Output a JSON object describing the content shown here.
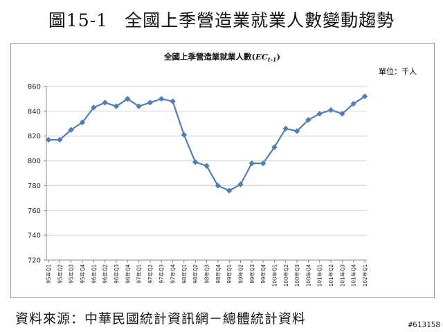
{
  "figure": {
    "number": "圖15-1",
    "title": "全國上季營造業就業人數變動趨勢",
    "source": "資料來源：中華民國統計資訊網－總體統計資料",
    "watermark": "#613158"
  },
  "chart_data": {
    "type": "line",
    "title": "全國上季營造業就業人數",
    "title_symbol_main": "EC",
    "title_symbol_sub": "t-1",
    "unit": "單位：千人",
    "ylim": [
      720,
      860
    ],
    "yticks": [
      720,
      740,
      760,
      780,
      800,
      820,
      840,
      860
    ],
    "grid": true,
    "line_color": "#4f7dbb",
    "categories": [
      "95年Q1",
      "95年Q2",
      "95年Q3",
      "95年Q4",
      "96年Q1",
      "96年Q2",
      "96年Q3",
      "96年Q4",
      "97年Q1",
      "97年Q2",
      "97年Q3",
      "97年Q4",
      "98年Q1",
      "98年Q2",
      "98年Q3",
      "98年Q4",
      "99年Q1",
      "99年Q2",
      "99年Q3",
      "99年Q4",
      "100年Q1",
      "100年Q2",
      "100年Q3",
      "100年Q4",
      "101年Q1",
      "101年Q2",
      "101年Q3",
      "101年Q4",
      "102年Q1"
    ],
    "values": [
      817,
      817,
      825,
      831,
      843,
      847,
      844,
      850,
      844,
      847,
      850,
      848,
      821,
      799,
      796,
      780,
      776,
      781,
      798,
      798,
      811,
      826,
      824,
      833,
      838,
      841,
      838,
      846,
      852
    ]
  }
}
